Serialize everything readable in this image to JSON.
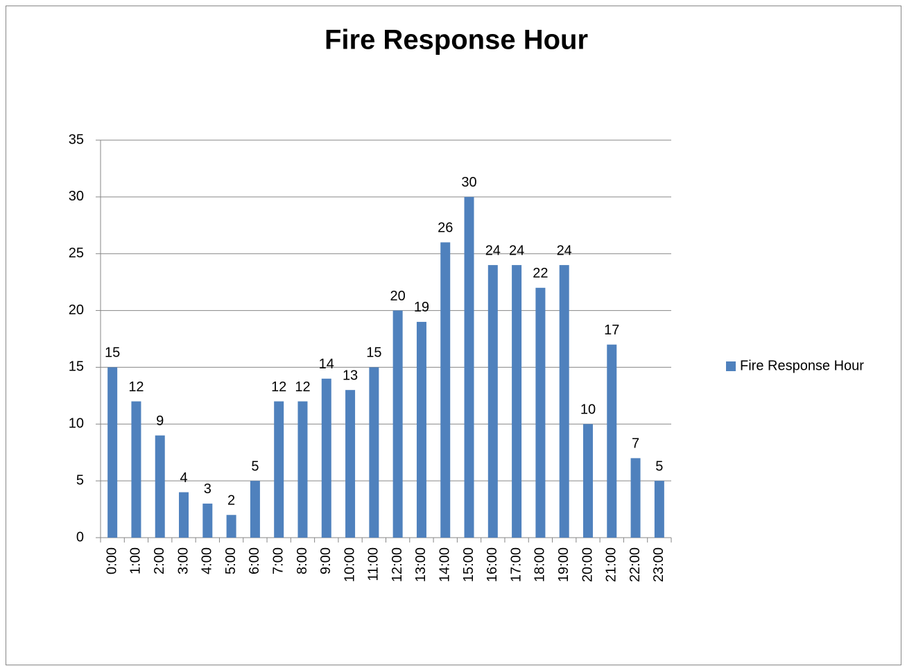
{
  "chart_data": {
    "type": "bar",
    "title": "Fire Response Hour",
    "categories": [
      "0:00",
      "1:00",
      "2:00",
      "3:00",
      "4:00",
      "5:00",
      "6:00",
      "7:00",
      "8:00",
      "9:00",
      "10:00",
      "11:00",
      "12:00",
      "13:00",
      "14:00",
      "15:00",
      "16:00",
      "17:00",
      "18:00",
      "19:00",
      "20:00",
      "21:00",
      "22:00",
      "23:00"
    ],
    "series": [
      {
        "name": "Fire Response Hour",
        "color": "#4f81bd",
        "values": [
          15,
          12,
          9,
          4,
          3,
          2,
          5,
          12,
          12,
          14,
          13,
          15,
          20,
          19,
          26,
          30,
          24,
          24,
          22,
          24,
          10,
          17,
          7,
          5
        ]
      }
    ],
    "ylim": [
      0,
      35
    ],
    "yticks": [
      0,
      5,
      10,
      15,
      20,
      25,
      30,
      35
    ],
    "grid": true,
    "legend": "right"
  }
}
